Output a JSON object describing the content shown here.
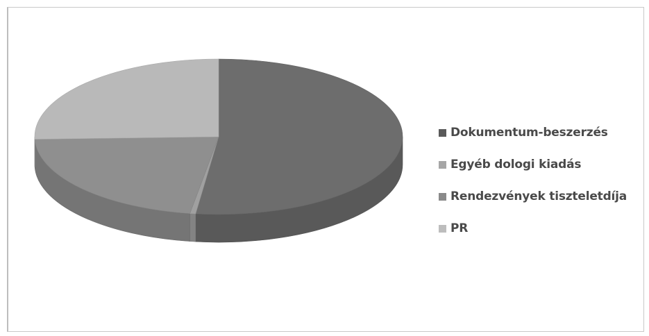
{
  "chart_data": {
    "type": "pie",
    "style": "3d",
    "title": "",
    "categories": [
      "Dokumentum-beszerzés",
      "Egyéb dologi kiadás",
      "Rendezvények tiszteletdíja",
      "PR"
    ],
    "values": [
      52,
      0.5,
      22,
      25.5
    ],
    "colors": [
      "#6d6d6d",
      "#a0a0a0",
      "#8f8f8f",
      "#b9b9b9"
    ],
    "legend": {
      "position": "right",
      "items": [
        {
          "label": "Dokumentum-beszerzés",
          "color": "#5a5a5a"
        },
        {
          "label": "Egyéb dologi kiadás",
          "color": "#a6a6a6"
        },
        {
          "label": "Rendezvények tiszteletdíja",
          "color": "#8a8a8a"
        },
        {
          "label": "PR",
          "color": "#bdbdbd"
        }
      ]
    }
  }
}
